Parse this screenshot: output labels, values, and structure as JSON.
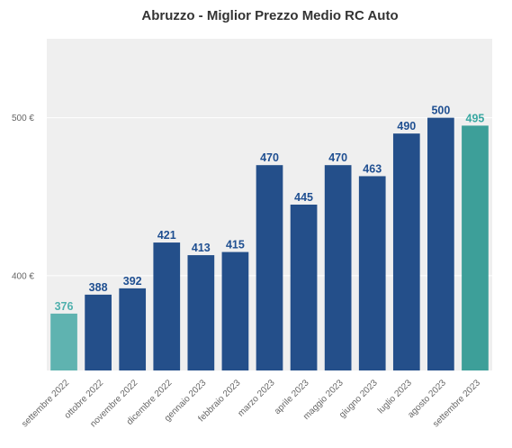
{
  "chart_data": {
    "type": "bar",
    "title": "Abruzzo - Miglior Prezzo Medio RC Auto",
    "xlabel": "",
    "ylabel": "",
    "ylim": [
      340,
      550
    ],
    "y_tick_values": [
      400,
      500
    ],
    "y_tick_labels": [
      "400 €",
      "500 €"
    ],
    "grid": true,
    "categories": [
      "settembre 2022",
      "ottobre 2022",
      "novembre 2022",
      "dicembre 2022",
      "gennaio 2023",
      "febbraio 2023",
      "marzo 2023",
      "aprile 2023",
      "maggio 2023",
      "giugno 2023",
      "luglio 2023",
      "agosto 2023",
      "settembre 2023"
    ],
    "values": [
      376,
      388,
      392,
      421,
      413,
      415,
      470,
      445,
      470,
      463,
      490,
      500,
      495
    ],
    "data_labels": [
      "376",
      "388",
      "392",
      "421",
      "413",
      "415",
      "470",
      "445",
      "470",
      "463",
      "490",
      "500",
      "495"
    ],
    "bar_colors": [
      "#5fb3b0",
      "#244f8a",
      "#244f8a",
      "#244f8a",
      "#244f8a",
      "#244f8a",
      "#244f8a",
      "#244f8a",
      "#244f8a",
      "#244f8a",
      "#244f8a",
      "#244f8a",
      "#3d9f99"
    ],
    "label_colors": [
      "#4fb0ad",
      "#1f4f91",
      "#1f4f91",
      "#1f4f91",
      "#1f4f91",
      "#1f4f91",
      "#1f4f91",
      "#1f4f91",
      "#1f4f91",
      "#1f4f91",
      "#1f4f91",
      "#1f4f91",
      "#3aa8a2"
    ],
    "plot_background": "#efefef"
  }
}
